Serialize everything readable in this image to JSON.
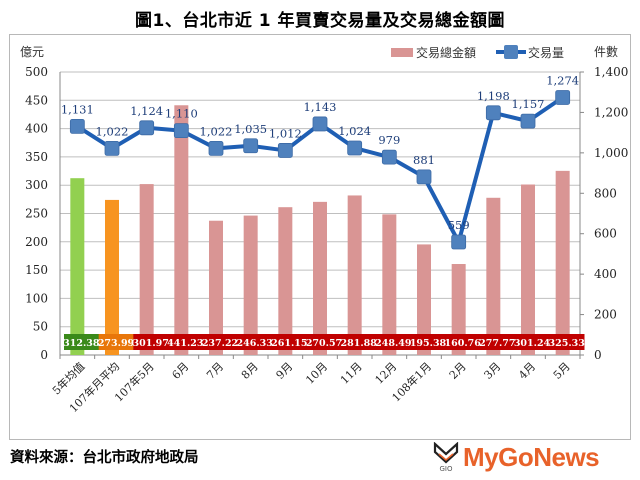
{
  "title": "圖1、台北市近 1 年買賣交易量及交易總金額圖",
  "source_note": "資料來源：台北市政府地政局",
  "logo": {
    "text": "MyGoNews",
    "mark_text": "GIO"
  },
  "legend": {
    "bar_label": "交易總金額",
    "line_label": "交易量"
  },
  "axes": {
    "left_unit": "億元",
    "right_unit": "件數",
    "left_ticks": [
      "0",
      "50",
      "100",
      "150",
      "200",
      "250",
      "300",
      "350",
      "400",
      "450",
      "500"
    ],
    "right_ticks": [
      "0",
      "200",
      "400",
      "600",
      "800",
      "1,000",
      "1,200",
      "1,400"
    ]
  },
  "colors": {
    "bar_default": "#d99594",
    "bar_5yr_avg": "#92d050",
    "bar_107_avg": "#f79420",
    "label_band_green": "#3a8a1a",
    "label_band_orange": "#e8760a",
    "label_band_red": "#c00000",
    "line": "#1f5fb4",
    "marker": "#4f81bd",
    "grid": "#bfbfbf"
  },
  "chart_data": {
    "type": "bar+line",
    "title": "圖1、台北市近 1 年買賣交易量及交易總金額圖",
    "categories": [
      "5年均值",
      "107年月平均",
      "107年5月",
      "6月",
      "7月",
      "8月",
      "9月",
      "10月",
      "11月",
      "12月",
      "108年1月",
      "2月",
      "3月",
      "4月",
      "5月"
    ],
    "series": [
      {
        "name": "交易總金額",
        "type": "bar",
        "axis": "left",
        "unit": "億元",
        "values": [
          312.38,
          273.99,
          301.97,
          441.23,
          237.22,
          246.33,
          261.15,
          270.57,
          281.88,
          248.49,
          195.38,
          160.76,
          277.77,
          301.24,
          325.33
        ],
        "labels": [
          "312.38",
          "273.99",
          "301.97",
          "441.23",
          "237.22",
          "246.33",
          "261.15",
          "270.57",
          "281.88",
          "248.49",
          "195.38",
          "160.76",
          "277.77",
          "301.24",
          "325.33"
        ]
      },
      {
        "name": "交易量",
        "type": "line",
        "axis": "right",
        "unit": "件數",
        "values": [
          1131,
          1022,
          1124,
          1110,
          1022,
          1035,
          1012,
          1143,
          1024,
          979,
          881,
          559,
          1198,
          1157,
          1274
        ],
        "labels": [
          "1,131",
          "1,022",
          "1,124",
          "1,110",
          "1,022",
          "1,035",
          "1,012",
          "1,143",
          "1,024",
          "979",
          "881",
          "559",
          "1,198",
          "1,157",
          "1,274"
        ]
      }
    ],
    "ylabel_left": "億元",
    "ylabel_right": "件數",
    "ylim_left": [
      0,
      500
    ],
    "ylim_right": [
      0,
      1400
    ],
    "grid": true,
    "legend_position": "top-right"
  }
}
